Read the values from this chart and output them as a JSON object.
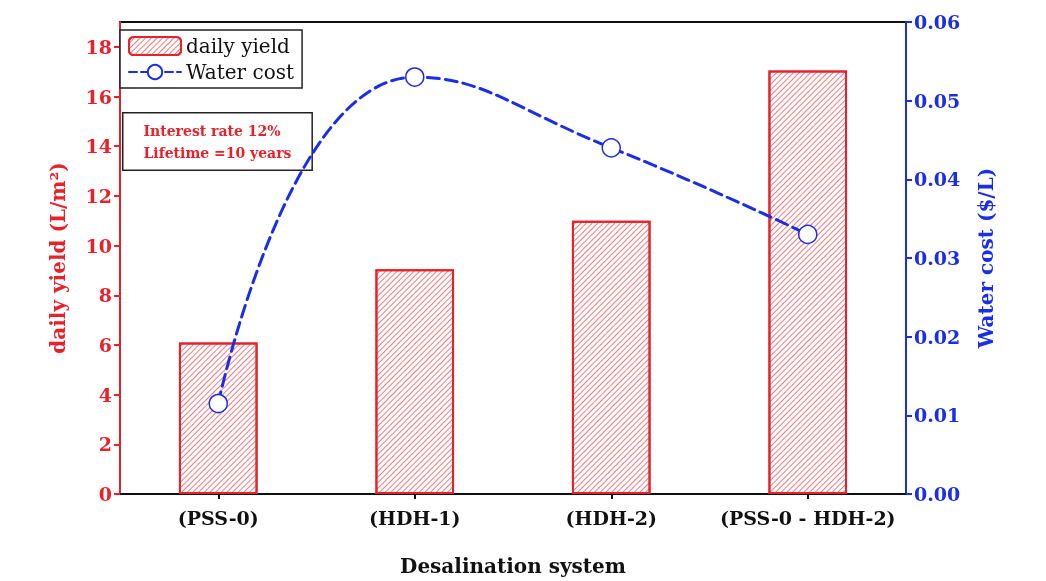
{
  "chart_data": {
    "type": "bar",
    "xlabel": "Desalination system",
    "ylabel": "daily yield (L/m²)",
    "y2label": "Water cost ($/L)",
    "categories": [
      "(PSS-0)",
      "(HDH-1)",
      "(HDH-2)",
      "(PSS-0 - HDH-2)"
    ],
    "series": [
      {
        "name": "daily yield",
        "color": "#e8222a",
        "values": [
          6.1,
          9.05,
          11,
          17.05
        ]
      },
      {
        "name": "Water cost",
        "type": "line",
        "axis": "y2",
        "color": "#1a2ee8",
        "marker": "circle",
        "line_style": "dashed",
        "values": [
          0.0115,
          0.053,
          0.044,
          0.033
        ]
      }
    ],
    "ylim": [
      0,
      19
    ],
    "yticks": [
      0,
      2,
      4,
      6,
      8,
      10,
      12,
      14,
      16,
      18
    ],
    "y2lim": [
      0,
      0.06
    ],
    "y2ticks": [
      {
        "value": 0,
        "label": "0.00"
      },
      {
        "value": 0.01,
        "label": "0.01"
      },
      {
        "value": 0.02,
        "label": "0.02"
      },
      {
        "value": 0.03,
        "label": "0.03"
      },
      {
        "value": 0.04,
        "label": "0.04"
      },
      {
        "value": 0.05,
        "label": "0.05"
      },
      {
        "value": 0.06,
        "label": "0.06"
      }
    ],
    "annotations": [
      "Interest rate 12%",
      "Lifetime =10 years"
    ],
    "legend": "top left",
    "grid": false
  }
}
